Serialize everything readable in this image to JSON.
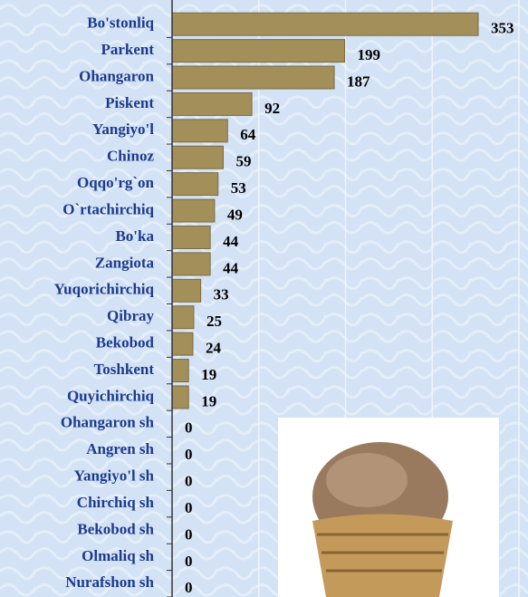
{
  "chart_data": {
    "type": "bar",
    "orientation": "horizontal",
    "categories": [
      "Bo'stonliq",
      "Parkent",
      "Ohangaron",
      "Piskent",
      "Yangiyo'l",
      "Chinoz",
      "Oqqo'rg`on",
      "O`rtachirchiq",
      "Bo'ka",
      "Zangiota",
      "Yuqorichirchiq",
      "Qibray",
      "Bekobod",
      "Toshkent",
      "Quyichirchiq",
      "Ohangaron sh",
      "Angren sh",
      "Yangiyo'l sh",
      "Chirchiq sh",
      "Bekobod sh",
      "Olmaliq sh",
      "Nurafshon sh"
    ],
    "values": [
      353,
      199,
      187,
      92,
      64,
      59,
      53,
      49,
      44,
      44,
      33,
      25,
      24,
      19,
      19,
      0,
      0,
      0,
      0,
      0,
      0,
      0
    ],
    "color": "#a38f59",
    "xlim": [
      0,
      400
    ],
    "xticks": [
      0,
      100,
      200,
      300,
      400
    ],
    "grid": true
  }
}
